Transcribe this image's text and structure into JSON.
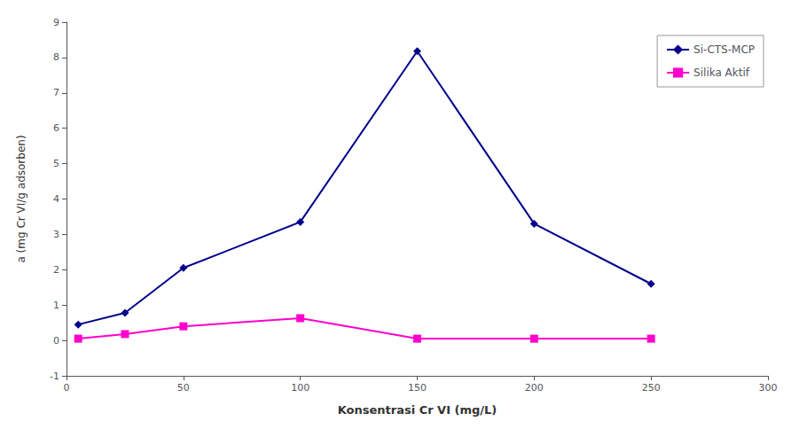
{
  "chart_data": {
    "type": "line",
    "x": [
      5,
      25,
      50,
      100,
      150,
      200,
      250
    ],
    "series": [
      {
        "name": "Si-CTS-MCP",
        "color": "#00008B",
        "marker": "diamond",
        "values": [
          0.45,
          0.78,
          2.05,
          3.35,
          8.18,
          3.3,
          1.6
        ]
      },
      {
        "name": "Silika Aktif",
        "color": "#FF00CC",
        "marker": "square",
        "values": [
          0.05,
          0.18,
          0.4,
          0.63,
          0.05,
          0.05,
          0.05
        ]
      }
    ],
    "xlabel": "Konsentrasi Cr VI (mg/L)",
    "ylabel": "a (mg Cr VI/g adsorben)",
    "xlim": [
      0,
      300
    ],
    "ylim": [
      -1,
      9
    ],
    "xticks": [
      0,
      50,
      100,
      150,
      200,
      250,
      300
    ],
    "yticks": [
      -1,
      0,
      1,
      2,
      3,
      4,
      5,
      6,
      7,
      8,
      9
    ],
    "grid": false,
    "legend": "upper right"
  }
}
